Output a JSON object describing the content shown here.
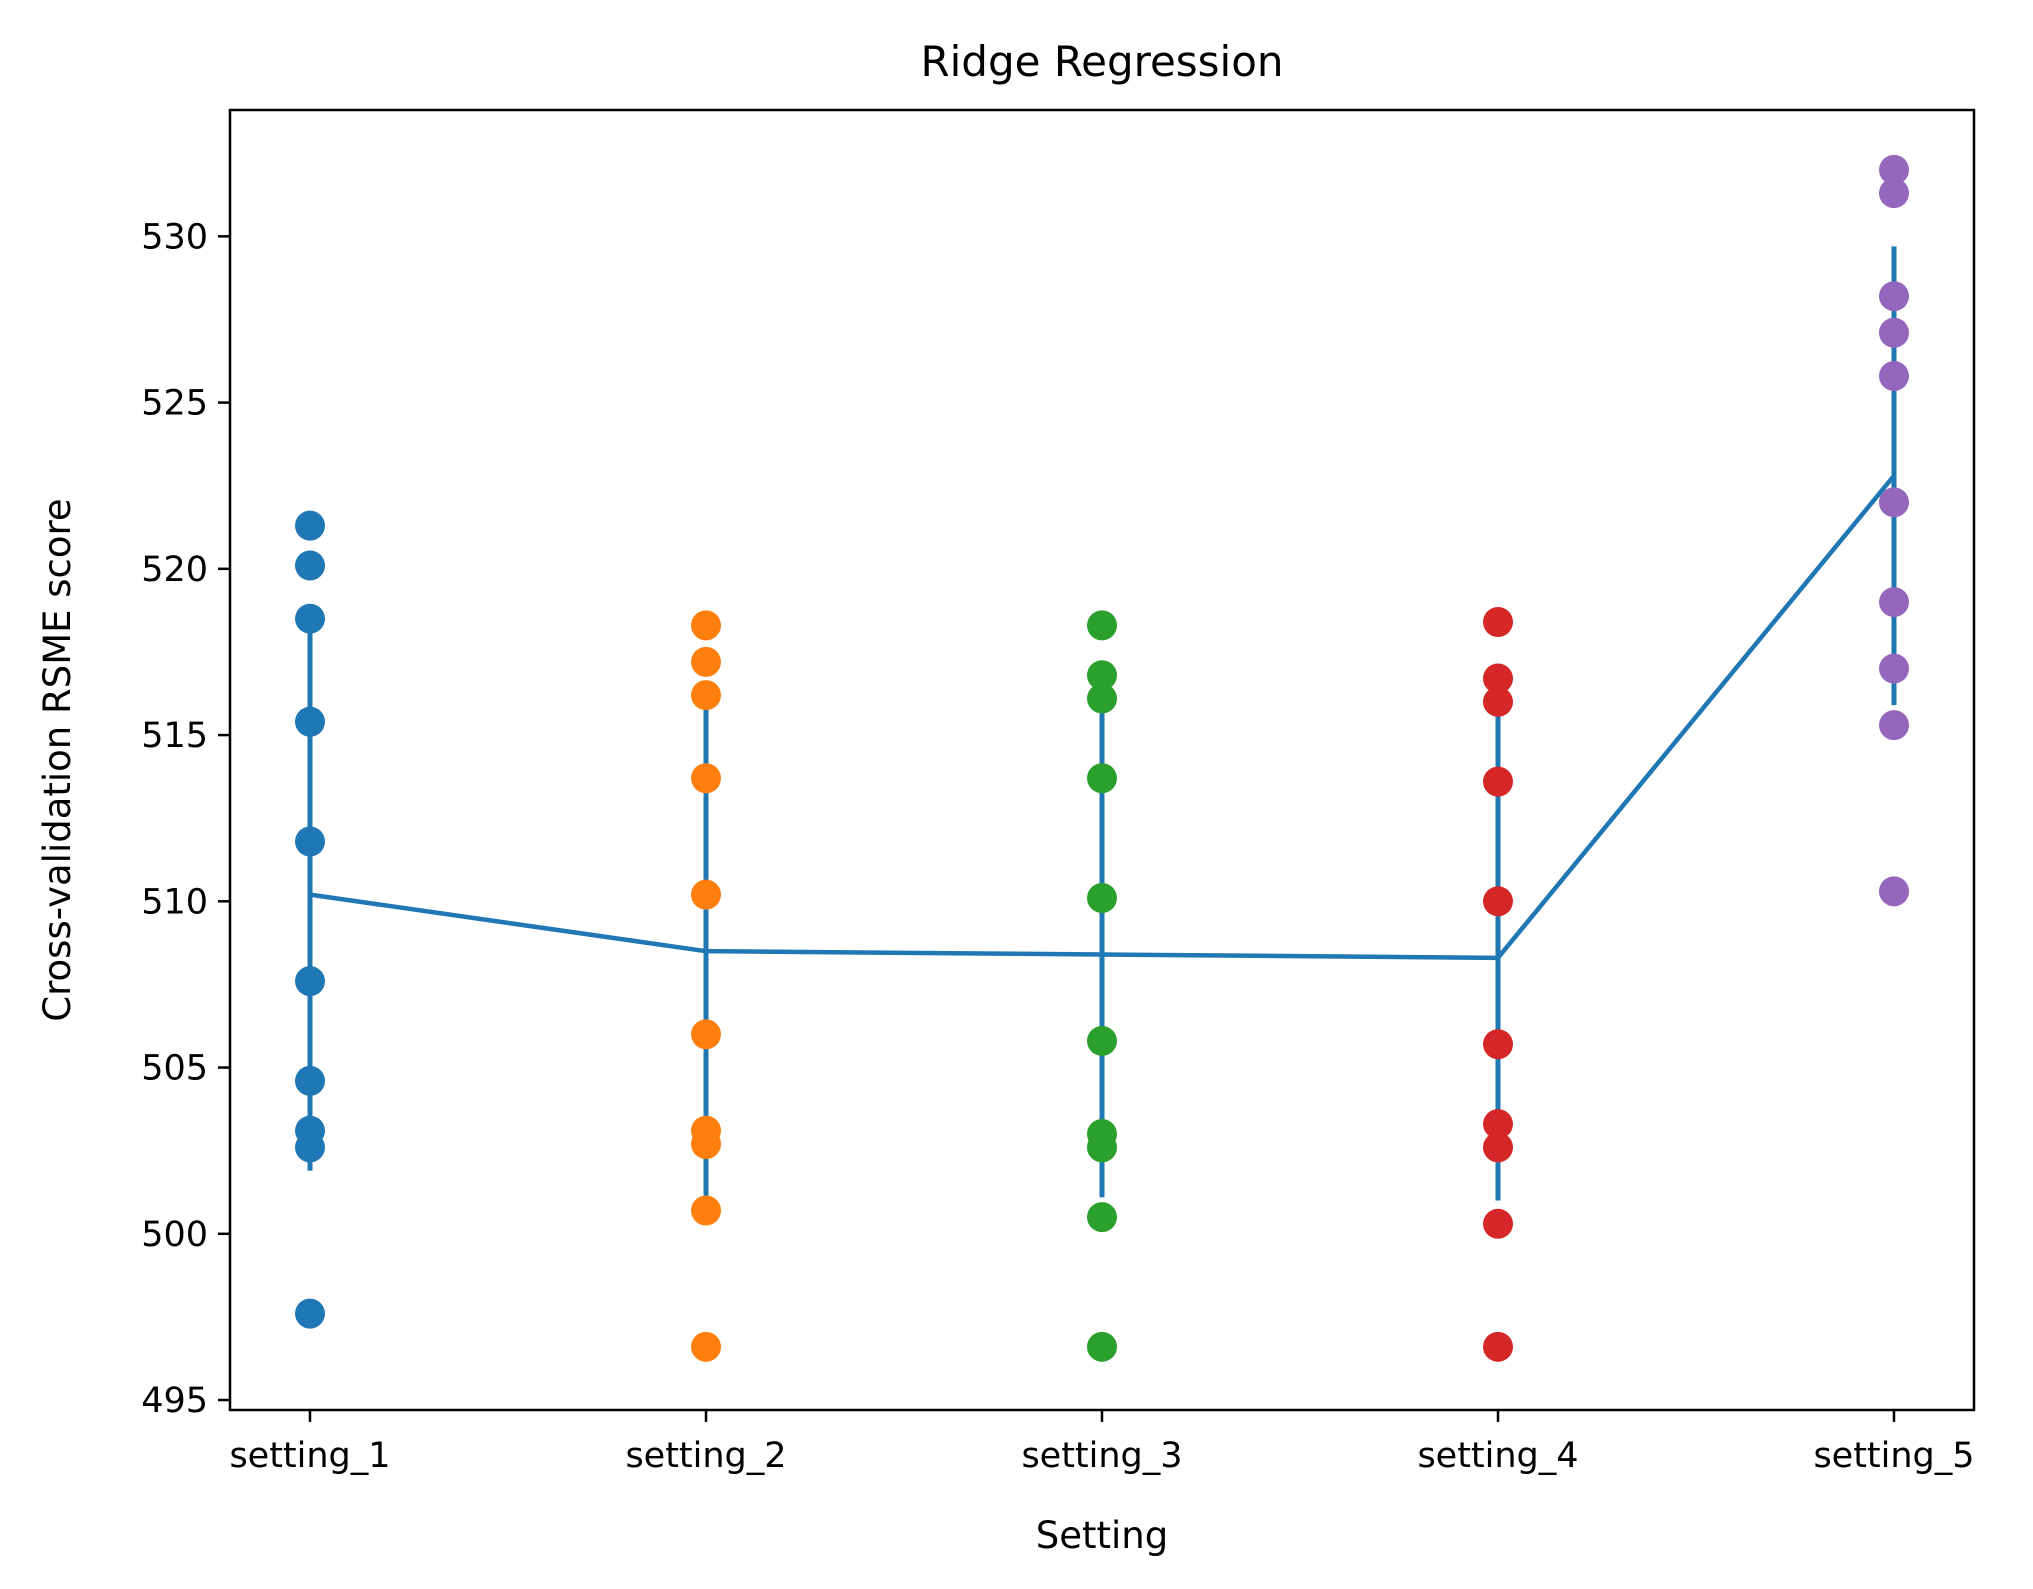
{
  "chart_data": {
    "type": "scatter",
    "title": "Ridge Regression",
    "xlabel": "Setting",
    "ylabel": "Cross-validation RSME score",
    "categories": [
      "setting_1",
      "setting_2",
      "setting_3",
      "setting_4",
      "setting_5"
    ],
    "ylim": [
      494.7,
      533.8
    ],
    "yticks": [
      495,
      500,
      505,
      510,
      515,
      520,
      525,
      530
    ],
    "grid": false,
    "series": [
      {
        "category": "setting_1",
        "color": "#1f77b4",
        "values": [
          521.3,
          520.1,
          518.5,
          515.4,
          511.8,
          507.6,
          504.6,
          503.1,
          502.6,
          497.6
        ]
      },
      {
        "category": "setting_2",
        "color": "#ff7f0e",
        "values": [
          518.3,
          517.2,
          516.2,
          513.7,
          510.2,
          506.0,
          503.1,
          502.7,
          500.7,
          496.6
        ]
      },
      {
        "category": "setting_3",
        "color": "#2ca02c",
        "values": [
          518.3,
          516.8,
          516.1,
          513.7,
          510.1,
          505.8,
          503.0,
          502.6,
          500.5,
          496.6
        ]
      },
      {
        "category": "setting_4",
        "color": "#d62728",
        "values": [
          518.4,
          516.7,
          516.0,
          513.6,
          510.0,
          505.7,
          503.3,
          502.6,
          500.3,
          496.6
        ]
      },
      {
        "category": "setting_5",
        "color": "#9467bd",
        "values": [
          532.0,
          531.3,
          528.2,
          527.1,
          525.8,
          522.0,
          519.0,
          517.0,
          515.3,
          510.3
        ]
      }
    ],
    "mean_line": {
      "color": "#1f77b4",
      "means": [
        510.2,
        508.5,
        508.4,
        508.3,
        522.8
      ],
      "std": [
        8.3,
        7.4,
        7.3,
        7.3,
        6.9
      ]
    }
  }
}
